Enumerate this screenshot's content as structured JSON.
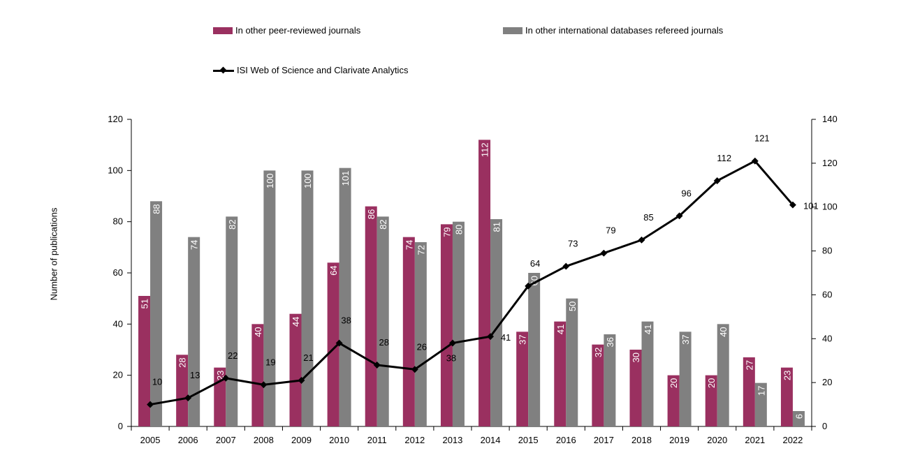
{
  "chart_data": {
    "type": "bar",
    "categories": [
      "2005",
      "2006",
      "2007",
      "2008",
      "2009",
      "2010",
      "2011",
      "2012",
      "2013",
      "2014",
      "2015",
      "2016",
      "2017",
      "2018",
      "2019",
      "2020",
      "2021",
      "2022"
    ],
    "series": [
      {
        "name": "In other peer-reviewed journals",
        "kind": "bar",
        "axis": "left",
        "color": "#9a3060",
        "values": [
          51,
          28,
          23,
          40,
          44,
          64,
          86,
          74,
          79,
          112,
          37,
          41,
          32,
          30,
          20,
          20,
          27,
          23
        ]
      },
      {
        "name": "In other international databases refereed journals",
        "kind": "bar",
        "axis": "left",
        "color": "#808080",
        "values": [
          88,
          74,
          82,
          100,
          100,
          101,
          82,
          72,
          80,
          81,
          60,
          50,
          36,
          41,
          37,
          40,
          17,
          6
        ]
      },
      {
        "name": "ISI Web of Science and Clarivate Analytics",
        "kind": "line",
        "axis": "right",
        "color": "#000000",
        "values": [
          10,
          13,
          22,
          19,
          21,
          38,
          28,
          26,
          38,
          41,
          64,
          73,
          79,
          85,
          96,
          112,
          121,
          101
        ]
      }
    ],
    "ylabel": "Number of publications",
    "ylim": [
      0,
      120
    ],
    "y2lim": [
      0,
      140
    ],
    "yticks": [
      0,
      20,
      40,
      60,
      80,
      100,
      120
    ],
    "y2ticks": [
      0,
      20,
      40,
      60,
      80,
      100,
      120,
      140
    ],
    "grid": false,
    "legend_position": "top"
  }
}
